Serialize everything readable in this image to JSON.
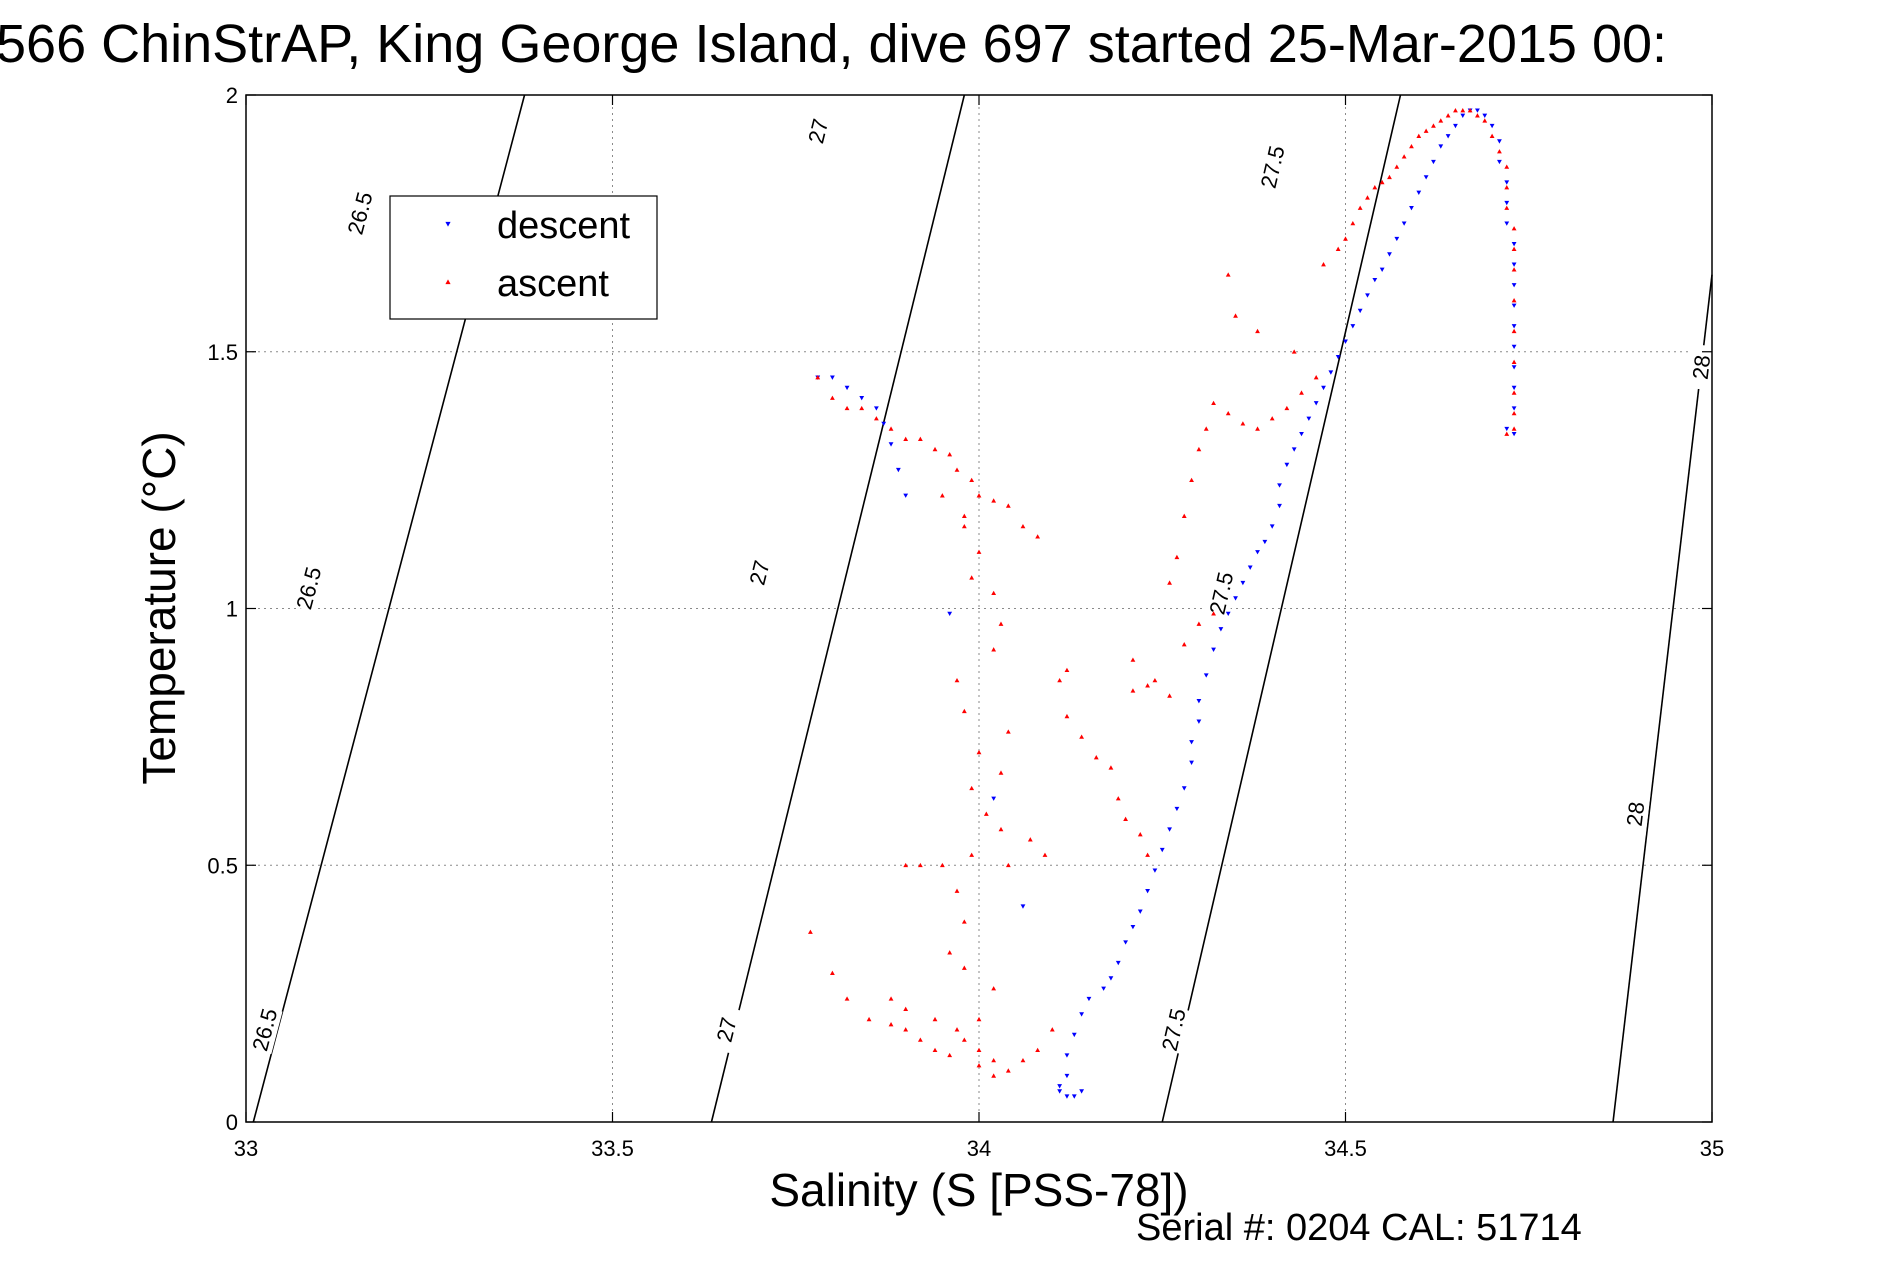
{
  "chart_data": {
    "type": "scatter",
    "title": "566 ChinStrAP, King George Island, dive 697 started 25-Mar-2015 00:",
    "xlabel": "Salinity (S [PSS-78])",
    "ylabel": "Temperature (°C)",
    "xlim": [
      33,
      35
    ],
    "ylim": [
      0,
      2
    ],
    "grid": true,
    "x_ticks": [
      "33",
      "33.5",
      "34",
      "34.5",
      "35"
    ],
    "y_ticks": [
      "0",
      "0.5",
      "1",
      "1.5",
      "2"
    ],
    "legend_position": "top-left",
    "footer": "Serial #: 0204  CAL: 51714",
    "contours": [
      {
        "label": "26.5",
        "points": [
          [
            33.01,
            0
          ],
          [
            33.38,
            2
          ]
        ],
        "label_at": [
          [
            33.025,
            0.18
          ],
          [
            33.085,
            1.04
          ],
          [
            33.155,
            1.77
          ]
        ]
      },
      {
        "label": "27",
        "points": [
          [
            33.635,
            0
          ],
          [
            33.98,
            2
          ]
        ],
        "label_at": [
          [
            33.655,
            0.18
          ],
          [
            33.7,
            1.07
          ],
          [
            33.78,
            1.93
          ]
        ]
      },
      {
        "label": "27.5",
        "points": [
          [
            34.25,
            0
          ],
          [
            34.575,
            2
          ]
        ],
        "label_at": [
          [
            34.265,
            0.18
          ],
          [
            34.33,
            1.03
          ],
          [
            34.4,
            1.86
          ]
        ]
      },
      {
        "label": "28",
        "points": [
          [
            34.865,
            0
          ],
          [
            35.0,
            1.65
          ]
        ],
        "label_at": [
          [
            34.895,
            0.6
          ],
          [
            34.985,
            1.47
          ]
        ]
      }
    ],
    "series": [
      {
        "name": "descent",
        "color": "#0000ff",
        "marker": "triangle-down",
        "points": [
          [
            33.78,
            1.45
          ],
          [
            33.8,
            1.45
          ],
          [
            33.82,
            1.43
          ],
          [
            33.84,
            1.41
          ],
          [
            33.86,
            1.39
          ],
          [
            33.87,
            1.36
          ],
          [
            33.88,
            1.32
          ],
          [
            33.89,
            1.27
          ],
          [
            33.9,
            1.22
          ],
          [
            33.96,
            0.99
          ],
          [
            34.02,
            0.63
          ],
          [
            34.06,
            0.42
          ],
          [
            34.11,
            0.06
          ],
          [
            34.11,
            0.07
          ],
          [
            34.12,
            0.05
          ],
          [
            34.13,
            0.05
          ],
          [
            34.14,
            0.06
          ],
          [
            34.12,
            0.09
          ],
          [
            34.12,
            0.13
          ],
          [
            34.13,
            0.17
          ],
          [
            34.14,
            0.21
          ],
          [
            34.15,
            0.24
          ],
          [
            34.17,
            0.26
          ],
          [
            34.18,
            0.28
          ],
          [
            34.19,
            0.31
          ],
          [
            34.2,
            0.35
          ],
          [
            34.21,
            0.38
          ],
          [
            34.22,
            0.41
          ],
          [
            34.23,
            0.45
          ],
          [
            34.24,
            0.49
          ],
          [
            34.25,
            0.53
          ],
          [
            34.26,
            0.57
          ],
          [
            34.27,
            0.61
          ],
          [
            34.28,
            0.65
          ],
          [
            34.29,
            0.7
          ],
          [
            34.29,
            0.74
          ],
          [
            34.3,
            0.78
          ],
          [
            34.3,
            0.82
          ],
          [
            34.31,
            0.87
          ],
          [
            34.32,
            0.92
          ],
          [
            34.33,
            0.96
          ],
          [
            34.34,
            0.99
          ],
          [
            34.35,
            1.02
          ],
          [
            34.36,
            1.05
          ],
          [
            34.37,
            1.08
          ],
          [
            34.38,
            1.11
          ],
          [
            34.39,
            1.13
          ],
          [
            34.4,
            1.16
          ],
          [
            34.41,
            1.2
          ],
          [
            34.41,
            1.24
          ],
          [
            34.42,
            1.28
          ],
          [
            34.43,
            1.31
          ],
          [
            34.44,
            1.34
          ],
          [
            34.45,
            1.37
          ],
          [
            34.46,
            1.4
          ],
          [
            34.47,
            1.43
          ],
          [
            34.48,
            1.46
          ],
          [
            34.49,
            1.49
          ],
          [
            34.5,
            1.52
          ],
          [
            34.51,
            1.55
          ],
          [
            34.52,
            1.58
          ],
          [
            34.53,
            1.61
          ],
          [
            34.54,
            1.64
          ],
          [
            34.55,
            1.66
          ],
          [
            34.56,
            1.69
          ],
          [
            34.57,
            1.72
          ],
          [
            34.58,
            1.75
          ],
          [
            34.59,
            1.78
          ],
          [
            34.6,
            1.81
          ],
          [
            34.61,
            1.84
          ],
          [
            34.62,
            1.87
          ],
          [
            34.63,
            1.9
          ],
          [
            34.64,
            1.92
          ],
          [
            34.65,
            1.94
          ],
          [
            34.66,
            1.96
          ],
          [
            34.67,
            1.97
          ],
          [
            34.68,
            1.97
          ],
          [
            34.69,
            1.96
          ],
          [
            34.7,
            1.94
          ],
          [
            34.71,
            1.91
          ],
          [
            34.71,
            1.87
          ],
          [
            34.72,
            1.83
          ],
          [
            34.72,
            1.79
          ],
          [
            34.72,
            1.75
          ],
          [
            34.73,
            1.71
          ],
          [
            34.73,
            1.67
          ],
          [
            34.73,
            1.63
          ],
          [
            34.73,
            1.59
          ],
          [
            34.73,
            1.55
          ],
          [
            34.73,
            1.51
          ],
          [
            34.73,
            1.47
          ],
          [
            34.73,
            1.43
          ],
          [
            34.73,
            1.39
          ],
          [
            34.72,
            1.35
          ],
          [
            34.73,
            1.34
          ]
        ]
      },
      {
        "name": "ascent",
        "color": "#ff0000",
        "marker": "triangle-up",
        "points": [
          [
            33.78,
            1.45
          ],
          [
            33.8,
            1.41
          ],
          [
            33.82,
            1.39
          ],
          [
            33.84,
            1.39
          ],
          [
            33.86,
            1.37
          ],
          [
            33.88,
            1.35
          ],
          [
            33.9,
            1.33
          ],
          [
            33.92,
            1.33
          ],
          [
            33.94,
            1.31
          ],
          [
            33.96,
            1.3
          ],
          [
            33.97,
            1.27
          ],
          [
            33.99,
            1.25
          ],
          [
            34.0,
            1.22
          ],
          [
            34.02,
            1.21
          ],
          [
            34.04,
            1.2
          ],
          [
            34.06,
            1.16
          ],
          [
            34.08,
            1.14
          ],
          [
            33.98,
            1.16
          ],
          [
            33.95,
            1.22
          ],
          [
            33.98,
            1.18
          ],
          [
            34.0,
            1.11
          ],
          [
            33.99,
            1.06
          ],
          [
            34.02,
            1.03
          ],
          [
            34.03,
            0.97
          ],
          [
            34.02,
            0.92
          ],
          [
            33.97,
            0.86
          ],
          [
            33.98,
            0.8
          ],
          [
            34.04,
            0.76
          ],
          [
            34.0,
            0.72
          ],
          [
            34.03,
            0.68
          ],
          [
            33.99,
            0.65
          ],
          [
            34.01,
            0.6
          ],
          [
            34.03,
            0.57
          ],
          [
            33.99,
            0.52
          ],
          [
            34.04,
            0.5
          ],
          [
            34.07,
            0.55
          ],
          [
            34.09,
            0.52
          ],
          [
            33.95,
            0.5
          ],
          [
            33.92,
            0.5
          ],
          [
            33.9,
            0.5
          ],
          [
            33.97,
            0.45
          ],
          [
            33.98,
            0.39
          ],
          [
            33.96,
            0.33
          ],
          [
            33.98,
            0.3
          ],
          [
            34.02,
            0.26
          ],
          [
            34.0,
            0.2
          ],
          [
            33.98,
            0.16
          ],
          [
            33.96,
            0.13
          ],
          [
            33.94,
            0.14
          ],
          [
            33.92,
            0.16
          ],
          [
            33.9,
            0.18
          ],
          [
            33.88,
            0.19
          ],
          [
            33.85,
            0.2
          ],
          [
            33.82,
            0.24
          ],
          [
            33.8,
            0.29
          ],
          [
            33.77,
            0.37
          ],
          [
            33.88,
            0.24
          ],
          [
            33.9,
            0.22
          ],
          [
            33.94,
            0.2
          ],
          [
            33.97,
            0.18
          ],
          [
            34.0,
            0.14
          ],
          [
            34.02,
            0.12
          ],
          [
            34.04,
            0.1
          ],
          [
            34.06,
            0.12
          ],
          [
            34.08,
            0.14
          ],
          [
            34.1,
            0.18
          ],
          [
            34.02,
            0.09
          ],
          [
            34.0,
            0.11
          ],
          [
            34.12,
            0.88
          ],
          [
            34.11,
            0.86
          ],
          [
            34.12,
            0.79
          ],
          [
            34.14,
            0.75
          ],
          [
            34.16,
            0.71
          ],
          [
            34.18,
            0.69
          ],
          [
            34.19,
            0.63
          ],
          [
            34.2,
            0.59
          ],
          [
            34.22,
            0.56
          ],
          [
            34.23,
            0.52
          ],
          [
            34.21,
            0.84
          ],
          [
            34.23,
            0.85
          ],
          [
            34.24,
            0.86
          ],
          [
            34.26,
            0.83
          ],
          [
            34.21,
            0.9
          ],
          [
            34.28,
            0.93
          ],
          [
            34.3,
            0.97
          ],
          [
            34.32,
            0.99
          ],
          [
            34.26,
            1.05
          ],
          [
            34.27,
            1.1
          ],
          [
            34.28,
            1.18
          ],
          [
            34.29,
            1.25
          ],
          [
            34.3,
            1.31
          ],
          [
            34.31,
            1.35
          ],
          [
            34.32,
            1.4
          ],
          [
            34.34,
            1.38
          ],
          [
            34.36,
            1.36
          ],
          [
            34.38,
            1.35
          ],
          [
            34.4,
            1.37
          ],
          [
            34.42,
            1.39
          ],
          [
            34.44,
            1.42
          ],
          [
            34.46,
            1.45
          ],
          [
            34.43,
            1.5
          ],
          [
            34.38,
            1.54
          ],
          [
            34.35,
            1.57
          ],
          [
            34.34,
            1.65
          ],
          [
            34.47,
            1.67
          ],
          [
            34.49,
            1.7
          ],
          [
            34.5,
            1.72
          ],
          [
            34.51,
            1.75
          ],
          [
            34.52,
            1.78
          ],
          [
            34.53,
            1.8
          ],
          [
            34.54,
            1.82
          ],
          [
            34.55,
            1.83
          ],
          [
            34.56,
            1.84
          ],
          [
            34.57,
            1.86
          ],
          [
            34.58,
            1.88
          ],
          [
            34.59,
            1.9
          ],
          [
            34.6,
            1.92
          ],
          [
            34.61,
            1.93
          ],
          [
            34.62,
            1.94
          ],
          [
            34.63,
            1.95
          ],
          [
            34.64,
            1.96
          ],
          [
            34.65,
            1.97
          ],
          [
            34.66,
            1.97
          ],
          [
            34.67,
            1.97
          ],
          [
            34.68,
            1.96
          ],
          [
            34.69,
            1.95
          ],
          [
            34.7,
            1.92
          ],
          [
            34.71,
            1.89
          ],
          [
            34.72,
            1.86
          ],
          [
            34.72,
            1.82
          ],
          [
            34.72,
            1.78
          ],
          [
            34.73,
            1.74
          ],
          [
            34.73,
            1.7
          ],
          [
            34.73,
            1.66
          ],
          [
            34.73,
            1.6
          ],
          [
            34.73,
            1.54
          ],
          [
            34.73,
            1.48
          ],
          [
            34.73,
            1.42
          ],
          [
            34.73,
            1.38
          ],
          [
            34.73,
            1.35
          ],
          [
            34.72,
            1.34
          ]
        ]
      }
    ]
  }
}
